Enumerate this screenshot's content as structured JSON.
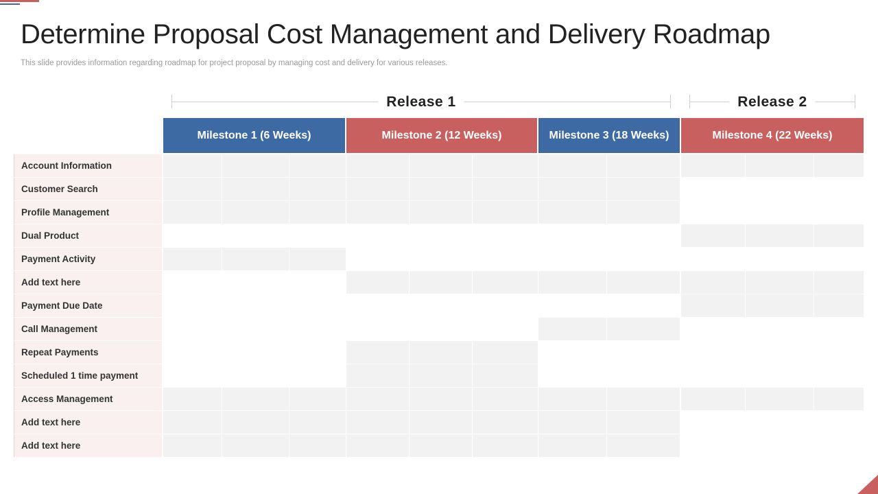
{
  "slide": {
    "title": "Determine Proposal Cost Management and Delivery Roadmap",
    "subtitle": "This slide provides information regarding roadmap for project proposal by managing cost and delivery for various releases."
  },
  "releases": [
    {
      "label": "Release  1"
    },
    {
      "label": "Release  2"
    }
  ],
  "milestones": [
    {
      "label": "Milestone  1 (6 Weeks)",
      "color": "#3d6aa3"
    },
    {
      "label": "Milestone  2 (12 Weeks)",
      "color": "#c96060"
    },
    {
      "label": "Milestone  3 (18 Weeks)",
      "color": "#3d6aa3"
    },
    {
      "label": "Milestone  4 (22 Weeks)",
      "color": "#c96060"
    }
  ],
  "rows": [
    {
      "label": "Account  Information",
      "filled": [
        0,
        1,
        2,
        3,
        4,
        5,
        6,
        7,
        8,
        9,
        10
      ]
    },
    {
      "label": "Customer  Search",
      "filled": [
        0,
        1,
        2,
        3,
        4,
        5,
        6,
        7
      ]
    },
    {
      "label": "Profile Management",
      "filled": [
        0,
        1,
        2,
        3,
        4,
        5,
        6,
        7
      ]
    },
    {
      "label": "Dual Product",
      "filled": [
        8,
        9,
        10
      ]
    },
    {
      "label": "Payment Activity",
      "filled": [
        0,
        1,
        2
      ]
    },
    {
      "label": "Add text here",
      "filled": [
        3,
        4,
        5,
        6,
        7,
        8,
        9,
        10
      ]
    },
    {
      "label": "Payment Due Date",
      "filled": [
        8,
        9,
        10
      ]
    },
    {
      "label": "Call Management",
      "filled": [
        6,
        7
      ]
    },
    {
      "label": "Repeat Payments",
      "filled": [
        3,
        4,
        5
      ]
    },
    {
      "label": "Scheduled 1 time payment",
      "filled": [
        3,
        4,
        5
      ]
    },
    {
      "label": "Access  Management",
      "filled": [
        0,
        1,
        2,
        3,
        4,
        5,
        6,
        7,
        8,
        9,
        10
      ]
    },
    {
      "label": "Add text here",
      "filled": [
        0,
        1,
        2,
        3,
        4,
        5,
        6,
        7
      ]
    },
    {
      "label": "Add text here",
      "filled": [
        0,
        1,
        2,
        3,
        4,
        5,
        6,
        7
      ]
    }
  ],
  "colors": {
    "accent_blue": "#3d6aa3",
    "accent_red": "#c96060",
    "cell_fill": "#f2f2f2",
    "label_fill": "#fbf0f0"
  }
}
